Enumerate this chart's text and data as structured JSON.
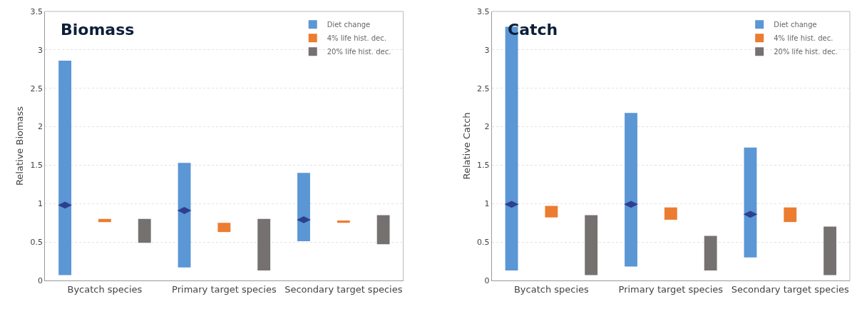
{
  "chart_data": [
    {
      "type": "bar",
      "title": "Biomass",
      "ylabel": "Relative Biomass",
      "categories": [
        null,
        "Bycatch species",
        null,
        null,
        "Primary target species",
        null,
        null,
        "Secondary target species",
        null
      ],
      "ylim": [
        0,
        3.5
      ],
      "yticks": [
        0,
        0.5,
        1,
        1.5,
        2,
        2.5,
        3,
        3.5
      ],
      "grid": "y",
      "legend": "top right",
      "series": [
        {
          "name": "Diet change",
          "color": "#5b96d5",
          "base": [
            0.07,
            null,
            null,
            0.17,
            null,
            null,
            0.51,
            null,
            null
          ],
          "values": [
            2.79,
            null,
            null,
            1.36,
            null,
            null,
            0.89,
            null,
            null
          ]
        },
        {
          "name": "4% life hist. dec.",
          "color": "#ec7c30",
          "base": [
            null,
            0.76,
            null,
            null,
            0.63,
            null,
            null,
            0.75,
            null
          ],
          "values": [
            null,
            0.04,
            null,
            null,
            0.12,
            null,
            null,
            0.03,
            null
          ]
        },
        {
          "name": "20% life hist. dec.",
          "color": "#767171",
          "base": [
            null,
            null,
            0.49,
            null,
            null,
            0.13,
            null,
            null,
            0.47
          ],
          "values": [
            null,
            null,
            0.31,
            null,
            null,
            0.67,
            null,
            null,
            0.38
          ]
        },
        {
          "type": "scatter",
          "marker": "diamond",
          "color": "#2e3f8f",
          "values": [
            0.98,
            null,
            null,
            0.91,
            null,
            null,
            0.79,
            null,
            null
          ]
        }
      ]
    },
    {
      "type": "bar",
      "title": "Catch",
      "ylabel": "Relative Catch",
      "categories": [
        null,
        "Bycatch species",
        null,
        null,
        "Primary target species",
        null,
        null,
        "Secondary target species",
        null
      ],
      "ylim": [
        0,
        3.5
      ],
      "yticks": [
        0,
        0.5,
        1,
        1.5,
        2,
        2.5,
        3,
        3.5
      ],
      "grid": "y",
      "legend": "top right",
      "series": [
        {
          "name": "Diet change",
          "color": "#5b96d5",
          "base": [
            0.13,
            null,
            null,
            0.18,
            null,
            null,
            0.3,
            null,
            null
          ],
          "values": [
            3.17,
            null,
            null,
            2.0,
            null,
            null,
            1.43,
            null,
            null
          ]
        },
        {
          "name": "4% life hist. dec.",
          "color": "#ec7c30",
          "base": [
            null,
            0.82,
            null,
            null,
            0.79,
            null,
            null,
            0.76,
            null
          ],
          "values": [
            null,
            0.15,
            null,
            null,
            0.16,
            null,
            null,
            0.19,
            null
          ]
        },
        {
          "name": "20% life hist. dec.",
          "color": "#767171",
          "base": [
            null,
            null,
            0.07,
            null,
            null,
            0.13,
            null,
            null,
            0.07
          ],
          "values": [
            null,
            null,
            0.78,
            null,
            null,
            0.45,
            null,
            null,
            0.63
          ]
        },
        {
          "type": "scatter",
          "marker": "diamond",
          "color": "#2e3f8f",
          "values": [
            0.99,
            null,
            null,
            0.99,
            null,
            null,
            0.86,
            null,
            null
          ]
        }
      ]
    }
  ]
}
